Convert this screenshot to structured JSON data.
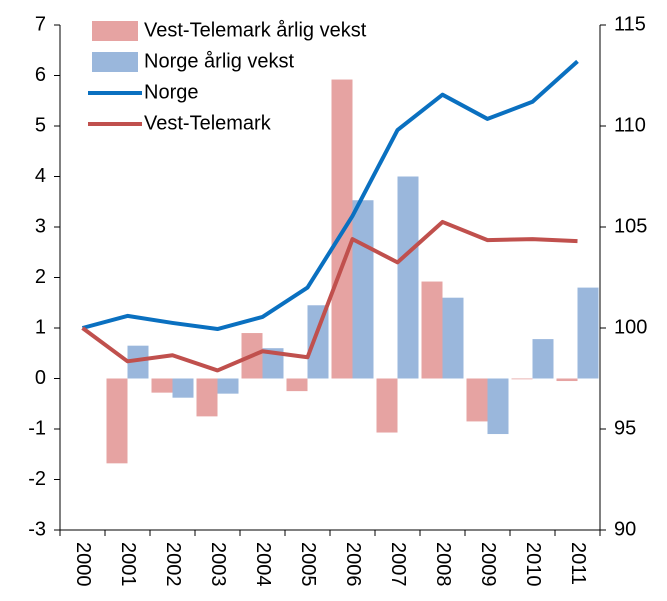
{
  "chart_data": {
    "type": "bar",
    "categories": [
      "2000",
      "2001",
      "2002",
      "2003",
      "2004",
      "2005",
      "2006",
      "2007",
      "2008",
      "2009",
      "2010",
      "2011"
    ],
    "series": [
      {
        "name": "Vest-Telemark årlig vekst",
        "type": "bar",
        "color": "#e6a3a2",
        "values": [
          null,
          -1.68,
          -0.28,
          -0.75,
          0.9,
          -0.25,
          5.92,
          -1.07,
          1.92,
          -0.85,
          0.0,
          -0.05
        ]
      },
      {
        "name": "Norge årlig vekst",
        "type": "bar",
        "color": "#9ab7dc",
        "values": [
          null,
          0.65,
          -0.38,
          -0.3,
          0.6,
          1.45,
          3.53,
          4.0,
          1.6,
          -1.1,
          0.78,
          1.8
        ]
      },
      {
        "name": "Norge",
        "type": "line",
        "axis": "y2",
        "color": "#0a70c0",
        "values": [
          100,
          100.6,
          100.25,
          99.95,
          100.55,
          102,
          105.55,
          109.8,
          111.55,
          110.35,
          111.2,
          113.2
        ]
      },
      {
        "name": "Vest-Telemark",
        "type": "line",
        "axis": "y2",
        "color": "#c0504d",
        "values": [
          100,
          98.35,
          98.65,
          97.9,
          98.85,
          98.55,
          104.4,
          103.25,
          105.25,
          104.35,
          104.4,
          104.3
        ]
      }
    ],
    "ylim": [
      -3,
      7
    ],
    "yticks": [
      -3,
      -2,
      -1,
      0,
      1,
      2,
      3,
      4,
      5,
      6,
      7
    ],
    "y2lim": [
      90,
      115
    ],
    "y2ticks": [
      90,
      95,
      100,
      105,
      110,
      115
    ],
    "legend": "top-left"
  }
}
